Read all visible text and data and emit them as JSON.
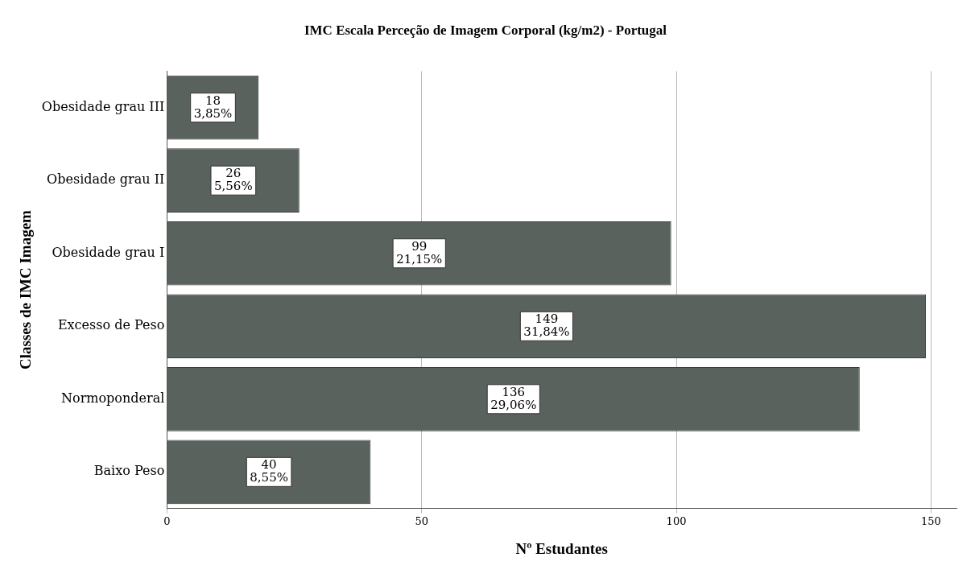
{
  "chart_data": {
    "type": "bar",
    "orientation": "horizontal",
    "title": "IMC Escala Perceção de Imagem Corporal (kg/m2) - Portugal",
    "xlabel": "Nº Estudantes",
    "ylabel": "Classes de IMC Imagem",
    "categories": [
      "Obesidade grau III",
      "Obesidade grau II",
      "Obesidade grau I",
      "Excesso de Peso",
      "Normoponderal",
      "Baixo Peso"
    ],
    "values": [
      18,
      26,
      99,
      149,
      136,
      40
    ],
    "value_labels": [
      "18\n3,85%",
      "26\n5,56%",
      "99\n21,15%",
      "149\n31,84%",
      "136\n29,06%",
      "40\n8,55%"
    ],
    "color": "#5a625e",
    "xlim": [
      0,
      155
    ],
    "xticks": [
      0,
      50,
      100,
      150
    ],
    "grid": "x",
    "legend": false
  }
}
